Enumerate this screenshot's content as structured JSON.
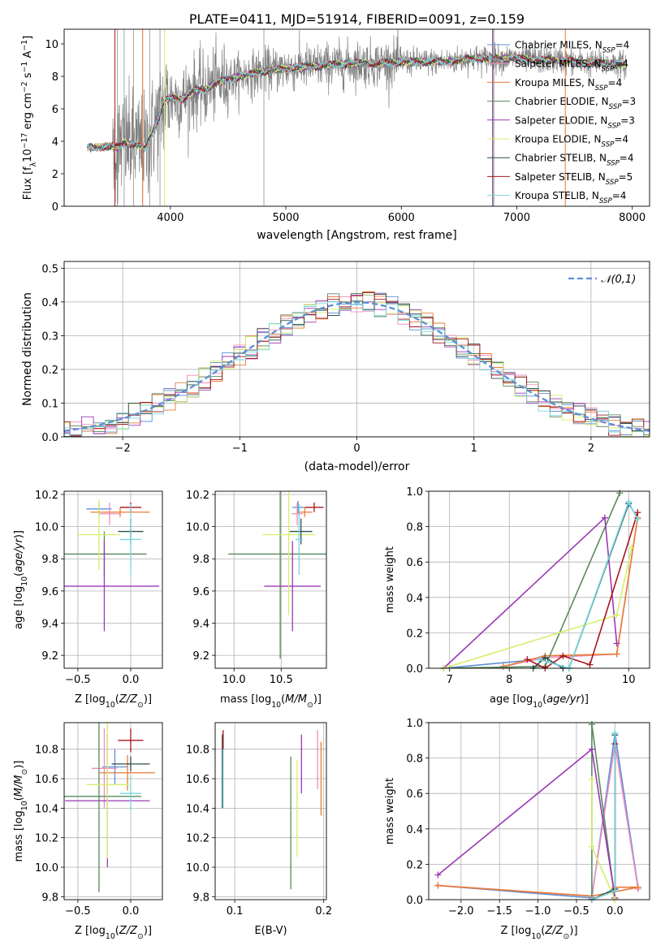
{
  "figure": {
    "title": "PLATE=0411, MJD=51914, FIBERID=0091, z=0.159"
  },
  "models": [
    {
      "name": "Chabrier MILES, N_SSP=4",
      "color": "#5b8fd6"
    },
    {
      "name": "Salpeter MILES, N_SSP=4",
      "color": "#ee8ec0"
    },
    {
      "name": "Kroupa MILES, N_SSP=4",
      "color": "#ea7a35"
    },
    {
      "name": "Chabrier ELODIE, N_SSP=3",
      "color": "#5a8a5c"
    },
    {
      "name": "Salpeter ELODIE, N_SSP=3",
      "color": "#9b38b6"
    },
    {
      "name": "Kroupa ELODIE, N_SSP=4",
      "color": "#d6ef6b"
    },
    {
      "name": "Chabrier STELIB, N_SSP=4",
      "color": "#2d4f4f"
    },
    {
      "name": "Salpeter STELIB, N_SSP=5",
      "color": "#a8161d"
    },
    {
      "name": "Kroupa STELIB, N_SSP=4",
      "color": "#78d6df"
    }
  ],
  "chart_data": [
    {
      "id": "spectrum",
      "type": "line",
      "title": "PLATE=0411, MJD=51914, FIBERID=0091, z=0.159",
      "xlabel": "wavelength [Angstrom, rest frame]",
      "ylabel": "Flux [fλ10^-17 erg cm^-2 s^-1 A^-1]",
      "xlim": [
        3080,
        8150
      ],
      "ylim": [
        0,
        10.9
      ],
      "xticks": [
        4000,
        5000,
        6000,
        7000,
        8000
      ],
      "yticks": [
        0,
        2,
        4,
        6,
        8,
        10
      ],
      "grid": false,
      "legend": "upper right",
      "data_color": "#808080",
      "model_continuum": {
        "x": [
          3280,
          3500,
          3540,
          3600,
          3700,
          3780,
          3840,
          3900,
          3950,
          4000,
          4100,
          4200,
          4300,
          4400,
          4600,
          4800,
          5000,
          5200,
          5400,
          5600,
          5800,
          6000,
          6200,
          6400,
          6600,
          6800,
          7000,
          7200,
          7400,
          7600,
          7800,
          7950
        ],
        "y": [
          3.6,
          3.7,
          3.6,
          3.9,
          3.8,
          3.5,
          4.5,
          5.5,
          6.5,
          6.7,
          6.6,
          7.1,
          7.2,
          7.6,
          8.0,
          8.3,
          8.5,
          8.6,
          8.7,
          8.8,
          8.8,
          8.9,
          8.9,
          8.9,
          9.1,
          9.1,
          9.1,
          9.0,
          9.0,
          8.8,
          8.8,
          8.7
        ]
      }
    },
    {
      "id": "residuals",
      "type": "histogram",
      "xlabel": "(data-model)/error",
      "ylabel": "Normed distribution",
      "xlim": [
        -2.5,
        2.5
      ],
      "ylim": [
        0,
        0.52
      ],
      "xticks": [
        -2,
        -1,
        0,
        1,
        2
      ],
      "yticks": [
        0.0,
        0.1,
        0.2,
        0.3,
        0.4,
        0.5
      ],
      "grid": true,
      "legend": "upper right",
      "reference_curve": {
        "label": "𝒩(0,1)",
        "color": "#5b8fd6",
        "style": "dashed"
      },
      "bin_width": 0.1
    },
    {
      "id": "age_vs_Z",
      "type": "errorbar",
      "xlabel": "Z [log10(Z/Z⊙)]",
      "ylabel": "age [log10(age/yr)]",
      "xlim": [
        -0.63,
        0.3
      ],
      "ylim": [
        9.12,
        10.22
      ],
      "xticks": [
        -0.5,
        0.0
      ],
      "yticks": [
        9.2,
        9.4,
        9.6,
        9.8,
        10.0,
        10.2
      ],
      "grid": true,
      "points": [
        {
          "model": 0,
          "x": -0.3,
          "y": 10.11,
          "xerr": 0.12,
          "yerr": 0.04
        },
        {
          "model": 1,
          "x": -0.2,
          "y": 10.08,
          "xerr": 0.1,
          "yerr": 0.07
        },
        {
          "model": 2,
          "x": -0.1,
          "y": 10.09,
          "xerr": 0.28,
          "yerr": 0.03
        },
        {
          "model": 3,
          "x": -0.25,
          "y": 9.83,
          "xerr": 0.4,
          "yerr": 0.14
        },
        {
          "model": 4,
          "x": -0.25,
          "y": 9.63,
          "xerr": 0.52,
          "yerr": 0.28
        },
        {
          "model": 5,
          "x": -0.3,
          "y": 9.95,
          "xerr": 0.2,
          "yerr": 0.22
        },
        {
          "model": 6,
          "x": 0.0,
          "y": 9.97,
          "xerr": 0.12,
          "yerr": 0.08
        },
        {
          "model": 7,
          "x": 0.0,
          "y": 10.12,
          "xerr": 0.1,
          "yerr": 0.03
        },
        {
          "model": 8,
          "x": 0.0,
          "y": 9.92,
          "xerr": 0.1,
          "yerr": 0.22
        }
      ]
    },
    {
      "id": "age_vs_mass",
      "type": "errorbar",
      "xlabel": "mass [log10(M/M⊙)]",
      "ylabel": "",
      "xlim": [
        9.8,
        10.98
      ],
      "ylim": [
        9.12,
        10.22
      ],
      "xticks": [
        10.0,
        10.5
      ],
      "yticks": [
        9.2,
        9.4,
        9.6,
        9.8,
        10.0,
        10.2
      ],
      "grid": true,
      "points": [
        {
          "model": 0,
          "x": 10.68,
          "y": 10.12,
          "xerr": 0.06,
          "yerr": 0.04
        },
        {
          "model": 1,
          "x": 10.67,
          "y": 10.08,
          "xerr": 0.06,
          "yerr": 0.07
        },
        {
          "model": 2,
          "x": 10.75,
          "y": 10.09,
          "xerr": 0.08,
          "yerr": 0.03
        },
        {
          "model": 3,
          "x": 10.49,
          "y": 9.83,
          "xerr": 0.55,
          "yerr": 0.65
        },
        {
          "model": 4,
          "x": 10.62,
          "y": 9.63,
          "xerr": 0.3,
          "yerr": 0.28
        },
        {
          "model": 5,
          "x": 10.58,
          "y": 9.95,
          "xerr": 0.28,
          "yerr": 0.5
        },
        {
          "model": 6,
          "x": 10.71,
          "y": 9.97,
          "xerr": 0.12,
          "yerr": 0.08
        },
        {
          "model": 7,
          "x": 10.85,
          "y": 10.12,
          "xerr": 0.1,
          "yerr": 0.03
        },
        {
          "model": 8,
          "x": 10.69,
          "y": 9.92,
          "xerr": 0.04,
          "yerr": 0.22
        }
      ]
    },
    {
      "id": "massweight_vs_age",
      "type": "line",
      "xlabel": "age [log10(age/yr)]",
      "ylabel": "mass weight",
      "xlim": [
        6.65,
        10.35
      ],
      "ylim": [
        0,
        1.0
      ],
      "xticks": [
        7,
        8,
        9,
        10
      ],
      "yticks": [
        0.0,
        0.2,
        0.4,
        0.6,
        0.8,
        1.0
      ],
      "grid": true,
      "series": [
        {
          "model": 0,
          "x": [
            6.9,
            8.5,
            9.0,
            10.0,
            10.15
          ],
          "y": [
            0.0,
            0.05,
            0.0,
            0.93,
            0.85
          ]
        },
        {
          "model": 1,
          "x": [
            7.9,
            8.6,
            9.8,
            10.15
          ],
          "y": [
            0.01,
            0.06,
            0.08,
            0.85
          ]
        },
        {
          "model": 2,
          "x": [
            7.9,
            8.6,
            9.8,
            10.15
          ],
          "y": [
            0.01,
            0.07,
            0.08,
            0.85
          ]
        },
        {
          "model": 3,
          "x": [
            6.9,
            8.6,
            9.85
          ],
          "y": [
            0.0,
            0.01,
            0.99
          ]
        },
        {
          "model": 4,
          "x": [
            6.9,
            9.6,
            9.8
          ],
          "y": [
            0.0,
            0.85,
            0.14
          ]
        },
        {
          "model": 5,
          "x": [
            6.9,
            9.8,
            10.05
          ],
          "y": [
            0.0,
            0.3,
            0.68
          ]
        },
        {
          "model": 6,
          "x": [
            8.4,
            8.6,
            8.9,
            9.0,
            10.0
          ],
          "y": [
            0.0,
            0.06,
            0.0,
            0.0,
            0.93
          ]
        },
        {
          "model": 7,
          "x": [
            8.3,
            8.6,
            8.9,
            9.35,
            10.15
          ],
          "y": [
            0.05,
            0.0,
            0.07,
            0.02,
            0.88
          ]
        },
        {
          "model": 8,
          "x": [
            8.5,
            9.0,
            10.0,
            10.15
          ],
          "y": [
            0.05,
            0.0,
            0.94,
            0.84
          ]
        }
      ]
    },
    {
      "id": "mass_vs_Z",
      "type": "errorbar",
      "xlabel": "Z [log10(Z/Z⊙)]",
      "ylabel": "mass [log10(M/M⊙)]",
      "xlim": [
        -0.63,
        0.3
      ],
      "ylim": [
        9.78,
        10.98
      ],
      "xticks": [
        -0.5,
        0.0
      ],
      "yticks": [
        9.8,
        10.0,
        10.2,
        10.4,
        10.6,
        10.8
      ],
      "grid": true,
      "points": [
        {
          "model": 0,
          "x": -0.15,
          "y": 10.68,
          "xerr": 0.12,
          "yerr": 0.12
        },
        {
          "model": 1,
          "x": -0.25,
          "y": 10.67,
          "xerr": 0.12,
          "yerr": 0.27
        },
        {
          "model": 2,
          "x": -0.03,
          "y": 10.64,
          "xerr": 0.26,
          "yerr": 0.12
        },
        {
          "model": 3,
          "x": -0.3,
          "y": 10.48,
          "xerr": 0.4,
          "yerr": 0.65
        },
        {
          "model": 4,
          "x": -0.22,
          "y": 10.45,
          "xerr": 0.4,
          "yerr": 0.45
        },
        {
          "model": 5,
          "x": -0.22,
          "y": 10.56,
          "xerr": 0.2,
          "yerr": 0.5
        },
        {
          "model": 6,
          "x": 0.0,
          "y": 10.7,
          "xerr": 0.18,
          "yerr": 0.05
        },
        {
          "model": 7,
          "x": 0.0,
          "y": 10.86,
          "xerr": 0.12,
          "yerr": 0.08
        },
        {
          "model": 8,
          "x": 0.0,
          "y": 10.5,
          "xerr": 0.1,
          "yerr": 0.12
        }
      ]
    },
    {
      "id": "mass_vs_EBV",
      "type": "errorbar",
      "xlabel": "E(B-V)",
      "ylabel": "",
      "xlim": [
        0.078,
        0.203
      ],
      "ylim": [
        9.78,
        10.98
      ],
      "xticks": [
        0.1,
        0.2
      ],
      "yticks": [
        9.8,
        10.0,
        10.2,
        10.4,
        10.6,
        10.8
      ],
      "grid": true,
      "points": [
        {
          "model": 0,
          "x": 0.087,
          "y": 10.6,
          "xerr": 0,
          "yerr": 0.2
        },
        {
          "model": 1,
          "x": 0.193,
          "y": 10.73,
          "xerr": 0,
          "yerr": 0.2
        },
        {
          "model": 2,
          "x": 0.197,
          "y": 10.6,
          "xerr": 0,
          "yerr": 0.25
        },
        {
          "model": 3,
          "x": 0.163,
          "y": 10.3,
          "xerr": 0,
          "yerr": 0.45
        },
        {
          "model": 4,
          "x": 0.175,
          "y": 10.7,
          "xerr": 0,
          "yerr": 0.2
        },
        {
          "model": 5,
          "x": 0.17,
          "y": 10.4,
          "xerr": 0,
          "yerr": 0.33
        },
        {
          "model": 6,
          "x": 0.086,
          "y": 10.65,
          "xerr": 0,
          "yerr": 0.25
        },
        {
          "model": 7,
          "x": 0.087,
          "y": 10.8,
          "xerr": 0,
          "yerr": 0.13
        },
        {
          "model": 8,
          "x": 0.087,
          "y": 10.6,
          "xerr": 0,
          "yerr": 0.2
        }
      ]
    },
    {
      "id": "massweight_vs_Z",
      "type": "line",
      "xlabel": "Z [log10(Z/Z⊙)]",
      "ylabel": "mass weight",
      "xlim": [
        -2.42,
        0.45
      ],
      "ylim": [
        0,
        1.0
      ],
      "xticks": [
        -2.0,
        -1.5,
        -1.0,
        -0.5,
        0.0
      ],
      "yticks": [
        0.0,
        0.2,
        0.4,
        0.6,
        0.8,
        1.0
      ],
      "grid": true,
      "series": [
        {
          "model": 0,
          "x": [
            -2.3,
            -0.3,
            0.0,
            0.3
          ],
          "y": [
            0.08,
            0.01,
            0.94,
            0.07
          ]
        },
        {
          "model": 1,
          "x": [
            -2.3,
            -0.3,
            0.0,
            0.3
          ],
          "y": [
            0.08,
            0.02,
            0.88,
            0.06
          ]
        },
        {
          "model": 2,
          "x": [
            -2.3,
            -0.3,
            0.3,
            0.0
          ],
          "y": [
            0.08,
            0.02,
            0.07,
            0.07
          ]
        },
        {
          "model": 3,
          "x": [
            -0.3,
            -0.3,
            0.0
          ],
          "y": [
            0.0,
            0.99,
            0.0
          ]
        },
        {
          "model": 4,
          "x": [
            -2.3,
            -0.3,
            0.0
          ],
          "y": [
            0.14,
            0.85,
            0.01
          ]
        },
        {
          "model": 5,
          "x": [
            -0.3,
            -0.3,
            0.0
          ],
          "y": [
            0.68,
            0.3,
            0.0
          ]
        },
        {
          "model": 6,
          "x": [
            -0.3,
            0.0,
            0.0
          ],
          "y": [
            0.0,
            0.06,
            0.93
          ]
        },
        {
          "model": 7,
          "x": [
            -0.3,
            0.0,
            0.0
          ],
          "y": [
            0.0,
            0.05,
            0.88
          ]
        },
        {
          "model": 8,
          "x": [
            -0.3,
            0.0,
            0.0
          ],
          "y": [
            0.0,
            0.05,
            0.94
          ]
        }
      ]
    }
  ]
}
